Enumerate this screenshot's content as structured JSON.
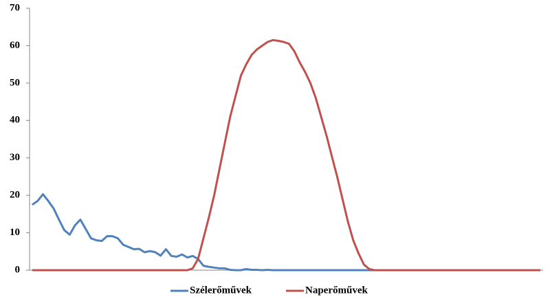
{
  "chart_data": {
    "type": "line",
    "series": [
      {
        "name": "Szélerőművek",
        "color": "#4f81bd",
        "values": [
          17.5,
          18.5,
          20.3,
          18.5,
          16.5,
          13.5,
          10.7,
          9.5,
          12,
          13.5,
          11,
          8.5,
          8,
          7.8,
          9.1,
          9.1,
          8.5,
          6.8,
          6.2,
          5.6,
          5.7,
          4.8,
          5.1,
          4.8,
          3.9,
          5.6,
          3.8,
          3.6,
          4.2,
          3.4,
          3.8,
          3,
          1.2,
          0.9,
          0.7,
          0.5,
          0.5,
          0.1,
          0,
          0,
          0.3,
          0.1,
          0.1,
          0,
          0.1,
          0,
          0,
          0,
          0,
          0,
          0,
          0,
          0,
          0,
          0,
          0,
          0,
          0,
          0,
          0,
          0,
          0,
          0,
          0,
          0,
          0,
          0,
          0,
          0,
          0,
          0,
          0,
          0,
          0,
          0,
          0,
          0,
          0,
          0,
          0,
          0,
          0,
          0,
          0,
          0,
          0,
          0,
          0,
          0,
          0,
          0,
          0,
          0,
          0,
          0,
          0
        ]
      },
      {
        "name": "Naperőművek",
        "color": "#c0504d",
        "values": [
          0,
          0,
          0,
          0,
          0,
          0,
          0,
          0,
          0,
          0,
          0,
          0,
          0,
          0,
          0,
          0,
          0,
          0,
          0,
          0,
          0,
          0,
          0,
          0,
          0,
          0,
          0,
          0,
          0,
          0,
          0.5,
          3,
          8.5,
          14,
          20,
          27,
          34,
          41,
          46.5,
          52,
          55,
          57.5,
          59,
          60,
          61,
          61.5,
          61.3,
          61,
          60.5,
          58.5,
          55.5,
          53,
          50,
          46,
          41,
          36,
          30.5,
          25,
          19,
          13,
          8,
          4.5,
          1.5,
          0.3,
          0,
          0,
          0,
          0,
          0,
          0,
          0,
          0,
          0,
          0,
          0,
          0,
          0,
          0,
          0,
          0,
          0,
          0,
          0,
          0,
          0,
          0,
          0,
          0,
          0,
          0,
          0,
          0,
          0,
          0,
          0,
          0
        ]
      }
    ],
    "ylim": [
      0,
      70
    ],
    "yticks": [
      0,
      10,
      20,
      30,
      40,
      50,
      60,
      70
    ],
    "legend": "bottom"
  }
}
